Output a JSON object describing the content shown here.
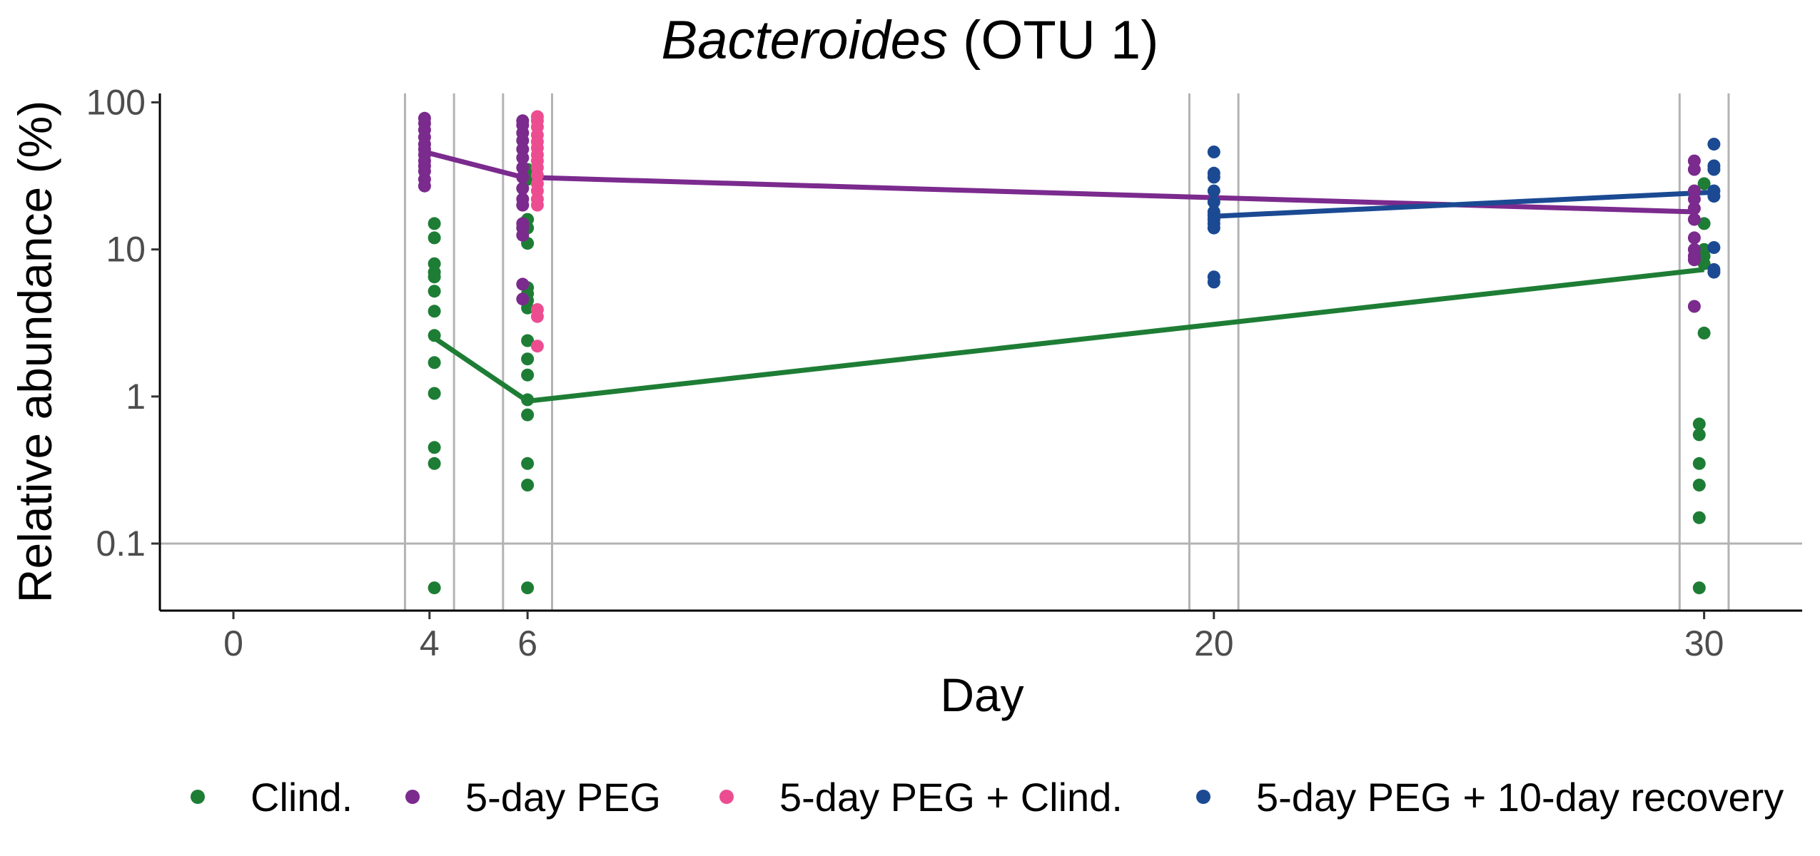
{
  "chart_data": {
    "type": "scatter",
    "title_italic": "Bacteroides",
    "title_rest": " (OTU 1)",
    "xlabel": "Day",
    "ylabel": "Relative abundance (%)",
    "y_scale": "log10",
    "xlim": [
      -1.5,
      32
    ],
    "ylim": [
      0.035,
      115
    ],
    "x_ticks": [
      {
        "value": 0,
        "label": "0"
      },
      {
        "value": 4,
        "label": "4"
      },
      {
        "value": 6,
        "label": "6"
      },
      {
        "value": 20,
        "label": "20"
      },
      {
        "value": 30,
        "label": "30"
      }
    ],
    "y_ticks": [
      {
        "value": 0.1,
        "label": "0.1"
      },
      {
        "value": 1,
        "label": "1"
      },
      {
        "value": 10,
        "label": "10"
      },
      {
        "value": 100,
        "label": "100"
      }
    ],
    "threshold_line": 0.1,
    "group_windows": [
      [
        3.5,
        4.5
      ],
      [
        5.5,
        6.5
      ],
      [
        19.5,
        20.5
      ],
      [
        29.5,
        30.5
      ]
    ],
    "series": [
      {
        "name": "Clind.",
        "color": "#1e7d35",
        "points": [
          {
            "x": 4.1,
            "y": 15
          },
          {
            "x": 4.1,
            "y": 12
          },
          {
            "x": 4.1,
            "y": 8
          },
          {
            "x": 4.1,
            "y": 7
          },
          {
            "x": 4.1,
            "y": 6.5
          },
          {
            "x": 4.1,
            "y": 5.2
          },
          {
            "x": 4.1,
            "y": 3.8
          },
          {
            "x": 4.1,
            "y": 2.6
          },
          {
            "x": 4.1,
            "y": 1.7
          },
          {
            "x": 4.1,
            "y": 1.05
          },
          {
            "x": 4.1,
            "y": 0.45
          },
          {
            "x": 4.1,
            "y": 0.35
          },
          {
            "x": 4.1,
            "y": 0.05
          },
          {
            "x": 6.0,
            "y": 35
          },
          {
            "x": 6.0,
            "y": 30
          },
          {
            "x": 6.0,
            "y": 16
          },
          {
            "x": 6.0,
            "y": 14
          },
          {
            "x": 6.0,
            "y": 11
          },
          {
            "x": 6.0,
            "y": 5.5
          },
          {
            "x": 6.0,
            "y": 5
          },
          {
            "x": 6.0,
            "y": 4.5
          },
          {
            "x": 6.0,
            "y": 4
          },
          {
            "x": 6.0,
            "y": 2.4
          },
          {
            "x": 6.0,
            "y": 1.8
          },
          {
            "x": 6.0,
            "y": 1.4
          },
          {
            "x": 6.0,
            "y": 0.95
          },
          {
            "x": 6.0,
            "y": 0.75
          },
          {
            "x": 6.0,
            "y": 0.35
          },
          {
            "x": 6.0,
            "y": 0.25
          },
          {
            "x": 6.0,
            "y": 0.05
          },
          {
            "x": 30.0,
            "y": 28
          },
          {
            "x": 30.0,
            "y": 15
          },
          {
            "x": 30.0,
            "y": 10
          },
          {
            "x": 30.0,
            "y": 9
          },
          {
            "x": 30.0,
            "y": 8
          },
          {
            "x": 30.0,
            "y": 2.7
          },
          {
            "x": 29.9,
            "y": 0.65
          },
          {
            "x": 29.9,
            "y": 0.55
          },
          {
            "x": 29.9,
            "y": 0.35
          },
          {
            "x": 29.9,
            "y": 0.25
          },
          {
            "x": 29.9,
            "y": 0.15
          },
          {
            "x": 29.9,
            "y": 0.05
          }
        ],
        "line": [
          {
            "x": 4.1,
            "y": 2.5
          },
          {
            "x": 6.0,
            "y": 0.93
          },
          {
            "x": 30.0,
            "y": 7.3
          }
        ]
      },
      {
        "name": "5-day PEG",
        "color": "#7b2a8e",
        "points": [
          {
            "x": 3.9,
            "y": 78
          },
          {
            "x": 3.9,
            "y": 72
          },
          {
            "x": 3.9,
            "y": 65
          },
          {
            "x": 3.9,
            "y": 58
          },
          {
            "x": 3.9,
            "y": 52
          },
          {
            "x": 3.9,
            "y": 48
          },
          {
            "x": 3.9,
            "y": 44
          },
          {
            "x": 3.9,
            "y": 40
          },
          {
            "x": 3.9,
            "y": 37
          },
          {
            "x": 3.9,
            "y": 34
          },
          {
            "x": 3.9,
            "y": 30
          },
          {
            "x": 3.9,
            "y": 27
          },
          {
            "x": 5.9,
            "y": 75
          },
          {
            "x": 5.9,
            "y": 70
          },
          {
            "x": 5.9,
            "y": 62
          },
          {
            "x": 5.9,
            "y": 55
          },
          {
            "x": 5.9,
            "y": 48
          },
          {
            "x": 5.9,
            "y": 42
          },
          {
            "x": 5.9,
            "y": 36
          },
          {
            "x": 5.9,
            "y": 31
          },
          {
            "x": 5.9,
            "y": 26
          },
          {
            "x": 5.9,
            "y": 22
          },
          {
            "x": 5.9,
            "y": 20
          },
          {
            "x": 5.9,
            "y": 15
          },
          {
            "x": 5.9,
            "y": 14
          },
          {
            "x": 5.9,
            "y": 12.5
          },
          {
            "x": 5.9,
            "y": 5.8
          },
          {
            "x": 5.9,
            "y": 4.6
          },
          {
            "x": 29.8,
            "y": 40
          },
          {
            "x": 29.8,
            "y": 35
          },
          {
            "x": 29.8,
            "y": 25
          },
          {
            "x": 29.8,
            "y": 22
          },
          {
            "x": 29.8,
            "y": 19
          },
          {
            "x": 29.8,
            "y": 16
          },
          {
            "x": 29.8,
            "y": 12
          },
          {
            "x": 29.8,
            "y": 10
          },
          {
            "x": 29.8,
            "y": 9
          },
          {
            "x": 29.8,
            "y": 8.5
          },
          {
            "x": 29.8,
            "y": 4.1
          }
        ],
        "line": [
          {
            "x": 3.9,
            "y": 46
          },
          {
            "x": 5.9,
            "y": 31
          },
          {
            "x": 29.8,
            "y": 18
          }
        ]
      },
      {
        "name": "5-day PEG + Clind.",
        "color": "#ec4d91",
        "points": [
          {
            "x": 6.2,
            "y": 80
          },
          {
            "x": 6.2,
            "y": 75
          },
          {
            "x": 6.2,
            "y": 68
          },
          {
            "x": 6.2,
            "y": 60
          },
          {
            "x": 6.2,
            "y": 54
          },
          {
            "x": 6.2,
            "y": 49
          },
          {
            "x": 6.2,
            "y": 44
          },
          {
            "x": 6.2,
            "y": 40
          },
          {
            "x": 6.2,
            "y": 36
          },
          {
            "x": 6.2,
            "y": 32
          },
          {
            "x": 6.2,
            "y": 28
          },
          {
            "x": 6.2,
            "y": 25
          },
          {
            "x": 6.2,
            "y": 22
          },
          {
            "x": 6.2,
            "y": 20
          },
          {
            "x": 6.2,
            "y": 3.9
          },
          {
            "x": 6.2,
            "y": 3.5
          },
          {
            "x": 6.2,
            "y": 2.2
          }
        ],
        "line": []
      },
      {
        "name": "5-day PEG + 10-day recovery",
        "color": "#1b4a93",
        "points": [
          {
            "x": 20.0,
            "y": 46
          },
          {
            "x": 20.0,
            "y": 33
          },
          {
            "x": 20.0,
            "y": 31
          },
          {
            "x": 20.0,
            "y": 25
          },
          {
            "x": 20.0,
            "y": 21
          },
          {
            "x": 20.0,
            "y": 18
          },
          {
            "x": 20.0,
            "y": 17
          },
          {
            "x": 20.0,
            "y": 16
          },
          {
            "x": 20.0,
            "y": 15
          },
          {
            "x": 20.0,
            "y": 14
          },
          {
            "x": 20.0,
            "y": 6.5
          },
          {
            "x": 20.0,
            "y": 6.0
          },
          {
            "x": 30.2,
            "y": 52
          },
          {
            "x": 30.2,
            "y": 37
          },
          {
            "x": 30.2,
            "y": 35
          },
          {
            "x": 30.2,
            "y": 25
          },
          {
            "x": 30.2,
            "y": 23
          },
          {
            "x": 30.2,
            "y": 10.3
          },
          {
            "x": 30.2,
            "y": 7.3
          },
          {
            "x": 30.2,
            "y": 7.0
          }
        ],
        "line": [
          {
            "x": 20.0,
            "y": 16.8
          },
          {
            "x": 30.2,
            "y": 24.5
          }
        ]
      }
    ],
    "legend_position": "bottom"
  }
}
